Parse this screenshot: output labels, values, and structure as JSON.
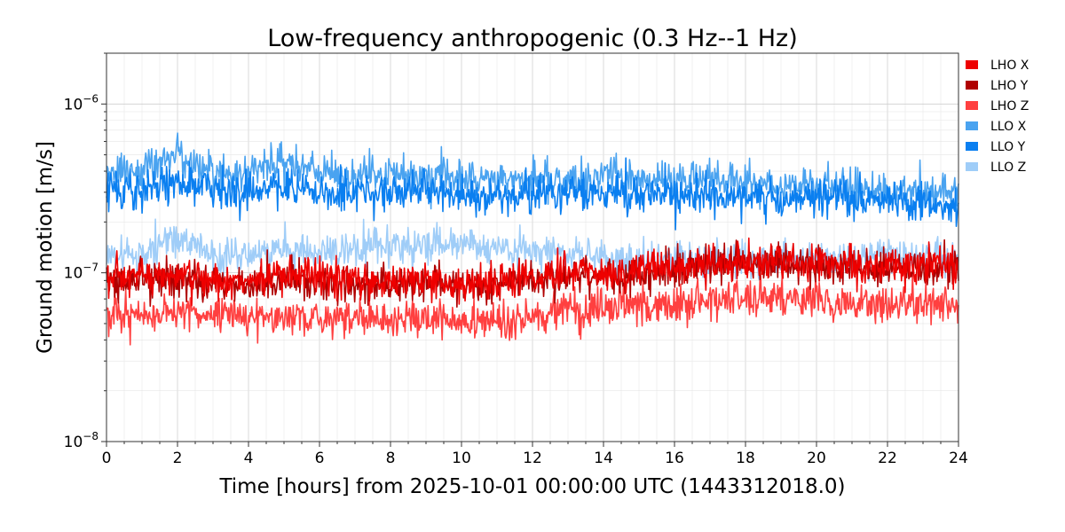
{
  "chart_data": {
    "type": "line",
    "title": "Low-frequency anthropogenic (0.3 Hz--1 Hz)",
    "xlabel": "Time [hours] from 2025-10-01 00:00:00 UTC (1443312018.0)",
    "ylabel": "Ground motion [m/s]",
    "xlim": [
      0,
      24
    ],
    "ylim": [
      1e-08,
      2e-06
    ],
    "yscale": "log",
    "grid": true,
    "legend_position": "outside-right-top",
    "x_ticks": [
      0,
      2,
      4,
      6,
      8,
      10,
      12,
      14,
      16,
      18,
      20,
      22,
      24
    ],
    "x_tick_labels": [
      "0",
      "2",
      "4",
      "6",
      "8",
      "10",
      "12",
      "14",
      "16",
      "18",
      "20",
      "22",
      "24"
    ],
    "y_ticks": [
      1e-08,
      1e-07,
      1e-06
    ],
    "y_tick_labels": [
      {
        "base": "10",
        "exp": "−8"
      },
      {
        "base": "10",
        "exp": "−7"
      },
      {
        "base": "10",
        "exp": "−6"
      }
    ],
    "x": [
      0,
      1,
      2,
      3,
      4,
      5,
      6,
      7,
      8,
      9,
      10,
      11,
      12,
      13,
      14,
      15,
      16,
      17,
      18,
      19,
      20,
      21,
      22,
      23,
      24
    ],
    "series": [
      {
        "name": "LHO X",
        "color": "#ee0000",
        "values": [
          9e-08,
          9.5e-08,
          9.5e-08,
          9e-08,
          9e-08,
          9.5e-08,
          9.5e-08,
          9e-08,
          9e-08,
          9e-08,
          8.5e-08,
          9e-08,
          9.5e-08,
          1e-07,
          1e-07,
          1.05e-07,
          1.1e-07,
          1.1e-07,
          1.15e-07,
          1.15e-07,
          1.15e-07,
          1.1e-07,
          1.1e-07,
          1.1e-07,
          1.1e-07
        ]
      },
      {
        "name": "LHO Y",
        "color": "#b00000",
        "values": [
          8.5e-08,
          9e-08,
          9e-08,
          9e-08,
          8.5e-08,
          9e-08,
          8.5e-08,
          8.5e-08,
          8.5e-08,
          8.5e-08,
          8.5e-08,
          8.5e-08,
          9e-08,
          9.5e-08,
          9.5e-08,
          1e-07,
          1.05e-07,
          1.1e-07,
          1.15e-07,
          1.15e-07,
          1.1e-07,
          1.1e-07,
          1.05e-07,
          1.05e-07,
          1.05e-07
        ]
      },
      {
        "name": "LHO Z",
        "color": "#ff4040",
        "values": [
          5.5e-08,
          5.5e-08,
          6e-08,
          5.5e-08,
          5.5e-08,
          5.5e-08,
          5.5e-08,
          5.5e-08,
          5e-08,
          5.5e-08,
          5e-08,
          5e-08,
          5.5e-08,
          6e-08,
          6e-08,
          6.5e-08,
          6.5e-08,
          7e-08,
          7e-08,
          7e-08,
          7e-08,
          6.5e-08,
          6.5e-08,
          6.5e-08,
          6.5e-08
        ]
      },
      {
        "name": "LLO X",
        "color": "#4aa3f0",
        "values": [
          4e-07,
          4e-07,
          5e-07,
          4e-07,
          4e-07,
          4.5e-07,
          4e-07,
          3.8e-07,
          3.8e-07,
          3.8e-07,
          3.6e-07,
          3.6e-07,
          3.6e-07,
          3.6e-07,
          3.8e-07,
          3.6e-07,
          3.5e-07,
          3.5e-07,
          3.5e-07,
          3.3e-07,
          3.3e-07,
          3.2e-07,
          3.1e-07,
          3e-07,
          3e-07
        ]
      },
      {
        "name": "LLO Y",
        "color": "#0a7ff0",
        "values": [
          3.2e-07,
          3e-07,
          3.5e-07,
          3.1e-07,
          3e-07,
          3.3e-07,
          3e-07,
          2.9e-07,
          3e-07,
          3e-07,
          2.9e-07,
          2.8e-07,
          2.9e-07,
          3e-07,
          3e-07,
          2.9e-07,
          2.9e-07,
          2.8e-07,
          2.8e-07,
          2.8e-07,
          2.8e-07,
          2.7e-07,
          2.6e-07,
          2.6e-07,
          2.5e-07
        ]
      },
      {
        "name": "LLO Z",
        "color": "#9fcdf8",
        "values": [
          1.3e-07,
          1.3e-07,
          1.6e-07,
          1.3e-07,
          1.3e-07,
          1.35e-07,
          1.35e-07,
          1.4e-07,
          1.4e-07,
          1.45e-07,
          1.45e-07,
          1.4e-07,
          1.35e-07,
          1.3e-07,
          1.25e-07,
          1.2e-07,
          1.2e-07,
          1.2e-07,
          1.2e-07,
          1.2e-07,
          1.3e-07,
          1.2e-07,
          1.3e-07,
          1.2e-07,
          1.15e-07
        ]
      }
    ]
  }
}
